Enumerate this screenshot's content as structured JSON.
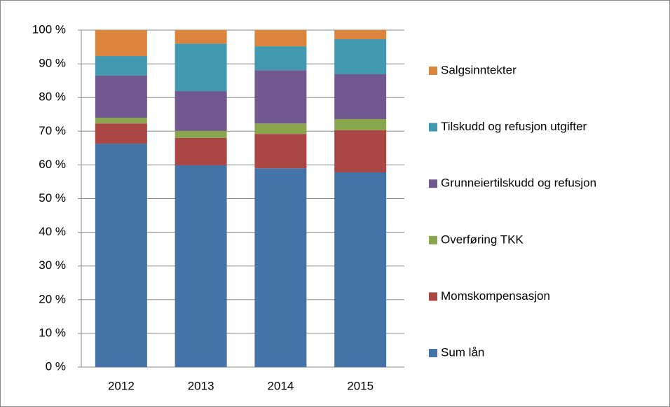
{
  "chart_data": {
    "type": "bar",
    "stacked": true,
    "categories": [
      "2012",
      "2013",
      "2014",
      "2015"
    ],
    "series": [
      {
        "name": "Sum lån",
        "color": "#4572a7",
        "values": [
          66.3,
          59.9,
          59.0,
          57.8
        ]
      },
      {
        "name": "Momskompensasjon",
        "color": "#aa4643",
        "values": [
          6.0,
          8.1,
          10.2,
          12.5
        ]
      },
      {
        "name": "Overføring TKK",
        "color": "#89a54e",
        "values": [
          1.7,
          2.1,
          3.1,
          3.3
        ]
      },
      {
        "name": "Grunneiertilskudd og refusjon",
        "color": "#71588f",
        "values": [
          12.5,
          11.8,
          15.8,
          13.3
        ]
      },
      {
        "name": "Tilskudd og refusjon utgifter",
        "color": "#4198af",
        "values": [
          5.8,
          14.1,
          7.1,
          10.4
        ]
      },
      {
        "name": "Salgsinntekter",
        "color": "#db843d",
        "values": [
          7.7,
          4.0,
          4.8,
          2.7
        ]
      }
    ],
    "ylim": [
      0,
      100
    ],
    "yticks": [
      {
        "value": 0,
        "label": "0 %"
      },
      {
        "value": 10,
        "label": "10 %"
      },
      {
        "value": 20,
        "label": "20 %"
      },
      {
        "value": 30,
        "label": "30 %"
      },
      {
        "value": 40,
        "label": "40 %"
      },
      {
        "value": 50,
        "label": "50 %"
      },
      {
        "value": 60,
        "label": "60 %"
      },
      {
        "value": 70,
        "label": "70 %"
      },
      {
        "value": 80,
        "label": "80 %"
      },
      {
        "value": 90,
        "label": "90 %"
      },
      {
        "value": 100,
        "label": "100 %"
      }
    ],
    "grid": true,
    "legend": "right"
  }
}
